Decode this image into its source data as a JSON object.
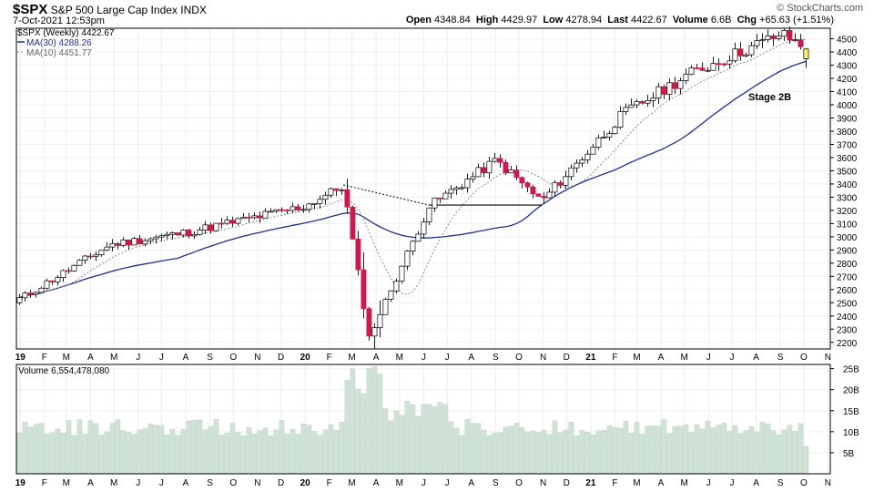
{
  "header": {
    "symbol": "$SPX",
    "name": "S&P 500 Large Cap Index",
    "exchange": "INDX",
    "datetime": "7-Oct-2021 12:53pm",
    "brand": "© StockCharts.com",
    "open_label": "Open",
    "open": "4348.84",
    "high_label": "High",
    "high": "4429.97",
    "low_label": "Low",
    "low": "4278.94",
    "last_label": "Last",
    "last": "4422.67",
    "volume_label": "Volume",
    "volume": "6.6B",
    "chg_label": "Chg",
    "chg": "+65.63 (+1.51%)"
  },
  "legend": {
    "price": "$SPX (Weekly) 4422.67",
    "ma30": "MA(30) 4288.26",
    "ma10": "MA(10) 4451.77"
  },
  "annotation": "Stage 2B",
  "volume_legend": "Volume 6,554,478,080",
  "colors": {
    "up": "#ffffff",
    "down": "#d1184a",
    "wick": "#000000",
    "ma30": "#1f2f8f",
    "ma10": "#8a8a8a",
    "volume": "#cfe2d6",
    "last_highlight": "#ffef5a"
  },
  "chart_data": {
    "type": "candlestick",
    "title": "$SPX S&P 500 Large Cap Index INDX (Weekly)",
    "ylim": [
      2150,
      4580
    ],
    "y_ticks": [
      2200,
      2300,
      2400,
      2500,
      2600,
      2700,
      2800,
      2900,
      3000,
      3100,
      3200,
      3300,
      3400,
      3500,
      3600,
      3700,
      3800,
      3900,
      4000,
      4100,
      4200,
      4300,
      4400,
      4500
    ],
    "x_tick_labels": [
      "19",
      "F",
      "M",
      "A",
      "M",
      "J",
      "J",
      "A",
      "S",
      "O",
      "N",
      "D",
      "20",
      "F",
      "M",
      "A",
      "M",
      "J",
      "J",
      "A",
      "S",
      "O",
      "N",
      "D",
      "21",
      "F",
      "M",
      "A",
      "M",
      "J",
      "J",
      "A",
      "S",
      "O",
      "N"
    ],
    "key_points": [
      {
        "date": "2019-01-01",
        "close": 2530
      },
      {
        "date": "2019-04-26",
        "close": 2940
      },
      {
        "date": "2019-07-26",
        "close": 3025
      },
      {
        "date": "2019-12-31",
        "close": 3230
      },
      {
        "date": "2020-02-19",
        "close": 3386
      },
      {
        "date": "2020-03-23",
        "close": 2237
      },
      {
        "date": "2020-06-08",
        "close": 3232
      },
      {
        "date": "2020-09-02",
        "close": 3580
      },
      {
        "date": "2020-10-30",
        "close": 3270
      },
      {
        "date": "2021-02-12",
        "close": 3934
      },
      {
        "date": "2021-05-07",
        "close": 4232
      },
      {
        "date": "2021-09-02",
        "close": 4537
      },
      {
        "date": "2021-10-07",
        "close": 4422.67
      }
    ],
    "last_bar": {
      "open": 4348.84,
      "high": 4429.97,
      "low": 4278.94,
      "close": 4422.67
    },
    "ma30_last": 4288.26,
    "ma10_last": 4451.77,
    "resistance_line": {
      "level": 3240,
      "from": "2020-06-08",
      "to": "2020-10-30"
    },
    "trend_line": {
      "from": {
        "date": "2020-02-19",
        "value": 3393
      },
      "to": {
        "date": "2020-06-08",
        "value": 3240
      }
    },
    "volume_ylim": [
      0,
      26
    ],
    "volume_ticks": [
      5,
      10,
      15,
      20,
      25
    ],
    "volume_tick_labels": [
      "5B",
      "10B",
      "15B",
      "20B",
      "25B"
    ],
    "volume_last": 6554478080
  }
}
